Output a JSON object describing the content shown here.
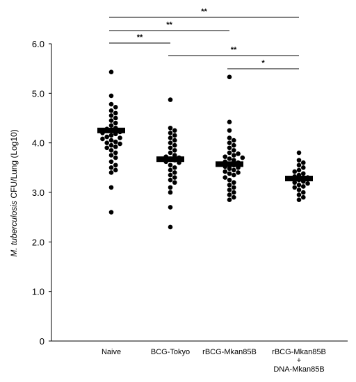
{
  "chart_data": {
    "type": "scatter",
    "ylabel_italic": "M. tuberculosis",
    "ylabel_rest": " CFU/Lung (Log10)",
    "ylim": [
      0,
      6
    ],
    "yticks": [
      "0",
      "1.0",
      "2.0",
      "3.0",
      "4.0",
      "5.0",
      "6.0"
    ],
    "grid": false,
    "groups": [
      {
        "label_lines": [
          "Naive"
        ],
        "mean": 4.25,
        "points": [
          5.43,
          4.95,
          4.78,
          4.72,
          4.65,
          4.6,
          4.55,
          4.5,
          4.45,
          4.4,
          4.35,
          4.3,
          4.28,
          4.25,
          4.22,
          4.2,
          4.18,
          4.15,
          4.12,
          4.1,
          4.08,
          4.05,
          4.02,
          4.0,
          3.98,
          3.95,
          3.92,
          3.9,
          3.85,
          3.8,
          3.75,
          3.7,
          3.62,
          3.55,
          3.5,
          3.45,
          3.4,
          3.1,
          2.6
        ]
      },
      {
        "label_lines": [
          "BCG-Tokyo"
        ],
        "mean": 3.67,
        "points": [
          4.87,
          4.3,
          4.25,
          4.2,
          4.15,
          4.1,
          4.05,
          4.0,
          3.95,
          3.9,
          3.85,
          3.8,
          3.75,
          3.72,
          3.7,
          3.68,
          3.65,
          3.62,
          3.6,
          3.55,
          3.5,
          3.45,
          3.4,
          3.35,
          3.3,
          3.25,
          3.2,
          3.1,
          3.0,
          2.7,
          2.3
        ]
      },
      {
        "label_lines": [
          "rBCG-Mkan85B"
        ],
        "mean": 3.57,
        "points": [
          5.33,
          4.42,
          4.25,
          4.1,
          4.05,
          4.0,
          3.95,
          3.9,
          3.85,
          3.8,
          3.78,
          3.75,
          3.72,
          3.7,
          3.68,
          3.65,
          3.62,
          3.6,
          3.58,
          3.55,
          3.52,
          3.5,
          3.48,
          3.45,
          3.42,
          3.4,
          3.38,
          3.35,
          3.3,
          3.25,
          3.2,
          3.15,
          3.1,
          3.05,
          3.0,
          2.95,
          2.9,
          2.85
        ]
      },
      {
        "label_lines": [
          "rBCG-Mkan85B",
          "+",
          "DNA-Mkan85B"
        ],
        "mean": 3.28,
        "points": [
          3.8,
          3.65,
          3.6,
          3.55,
          3.5,
          3.45,
          3.42,
          3.38,
          3.35,
          3.32,
          3.3,
          3.28,
          3.25,
          3.22,
          3.2,
          3.18,
          3.15,
          3.12,
          3.1,
          3.05,
          3.0,
          2.95,
          2.9,
          2.85
        ]
      }
    ],
    "significance": [
      {
        "from": 0,
        "to": 3,
        "label": "**"
      },
      {
        "from": 0,
        "to": 2,
        "label": "**"
      },
      {
        "from": 0,
        "to": 1,
        "label": "**"
      },
      {
        "from": 1,
        "to": 3,
        "label": "**"
      },
      {
        "from": 2,
        "to": 3,
        "label": "*"
      }
    ]
  }
}
